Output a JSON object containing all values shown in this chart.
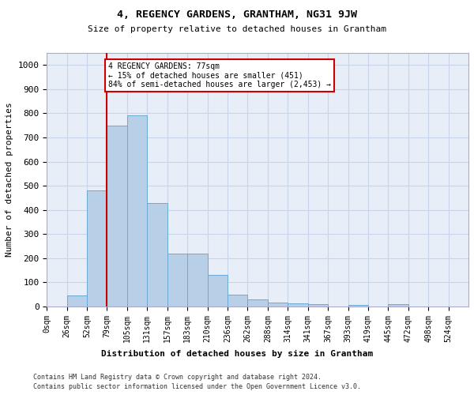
{
  "title": "4, REGENCY GARDENS, GRANTHAM, NG31 9JW",
  "subtitle": "Size of property relative to detached houses in Grantham",
  "xlabel": "Distribution of detached houses by size in Grantham",
  "ylabel": "Number of detached properties",
  "categories": [
    "0sqm",
    "26sqm",
    "52sqm",
    "79sqm",
    "105sqm",
    "131sqm",
    "157sqm",
    "183sqm",
    "210sqm",
    "236sqm",
    "262sqm",
    "288sqm",
    "314sqm",
    "341sqm",
    "367sqm",
    "393sqm",
    "419sqm",
    "445sqm",
    "472sqm",
    "498sqm",
    "524sqm"
  ],
  "bar_values": [
    0,
    46,
    480,
    750,
    790,
    430,
    218,
    218,
    130,
    50,
    30,
    18,
    12,
    10,
    0,
    8,
    0,
    10,
    0,
    0,
    0
  ],
  "bar_color": "#b8cfe8",
  "bar_edgecolor": "#6aaad4",
  "vline_x_index": 3,
  "vline_color": "#cc0000",
  "annotation_text": "4 REGENCY GARDENS: 77sqm\n← 15% of detached houses are smaller (451)\n84% of semi-detached houses are larger (2,453) →",
  "annotation_box_edgecolor": "#cc0000",
  "ylim": [
    0,
    1050
  ],
  "yticks": [
    0,
    100,
    200,
    300,
    400,
    500,
    600,
    700,
    800,
    900,
    1000
  ],
  "grid_color": "#c8d4e8",
  "bg_color": "#e8eef8",
  "footer1": "Contains HM Land Registry data © Crown copyright and database right 2024.",
  "footer2": "Contains public sector information licensed under the Open Government Licence v3.0.",
  "figwidth": 6.0,
  "figheight": 5.0,
  "dpi": 100
}
